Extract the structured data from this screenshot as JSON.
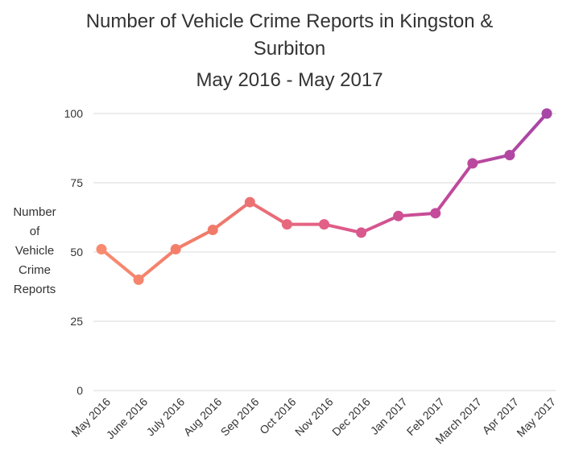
{
  "title_lines": [
    "Number of Vehicle Crime Reports in Kingston &",
    "Surbiton"
  ],
  "subtitle": "May 2016 - May 2017",
  "chart_data": {
    "type": "line",
    "title": "Number of Vehicle Crime Reports in Kingston & Surbiton",
    "subtitle": "May 2016 - May 2017",
    "xlabel": "",
    "ylabel_lines": [
      "Number",
      "of",
      "Vehicle",
      "Crime",
      "Reports"
    ],
    "categories": [
      "May 2016",
      "June 2016",
      "July 2016",
      "Aug 2016",
      "Sep 2016",
      "Oct 2016",
      "Nov 2016",
      "Dec 2016",
      "Jan 2017",
      "Feb 2017",
      "March 2017",
      "Apr 2017",
      "May 2017"
    ],
    "series": [
      {
        "values": [
          51,
          40,
          51,
          58,
          68,
          60,
          60,
          57,
          63,
          64,
          82,
          85,
          100
        ]
      }
    ],
    "ylim": [
      0,
      100
    ],
    "yticks": [
      0,
      25,
      50,
      75,
      100
    ],
    "grid": true,
    "gradient_colors": [
      "#f98a6e",
      "#f07a6a",
      "#e35f86",
      "#c44a9a",
      "#a746a6"
    ]
  }
}
